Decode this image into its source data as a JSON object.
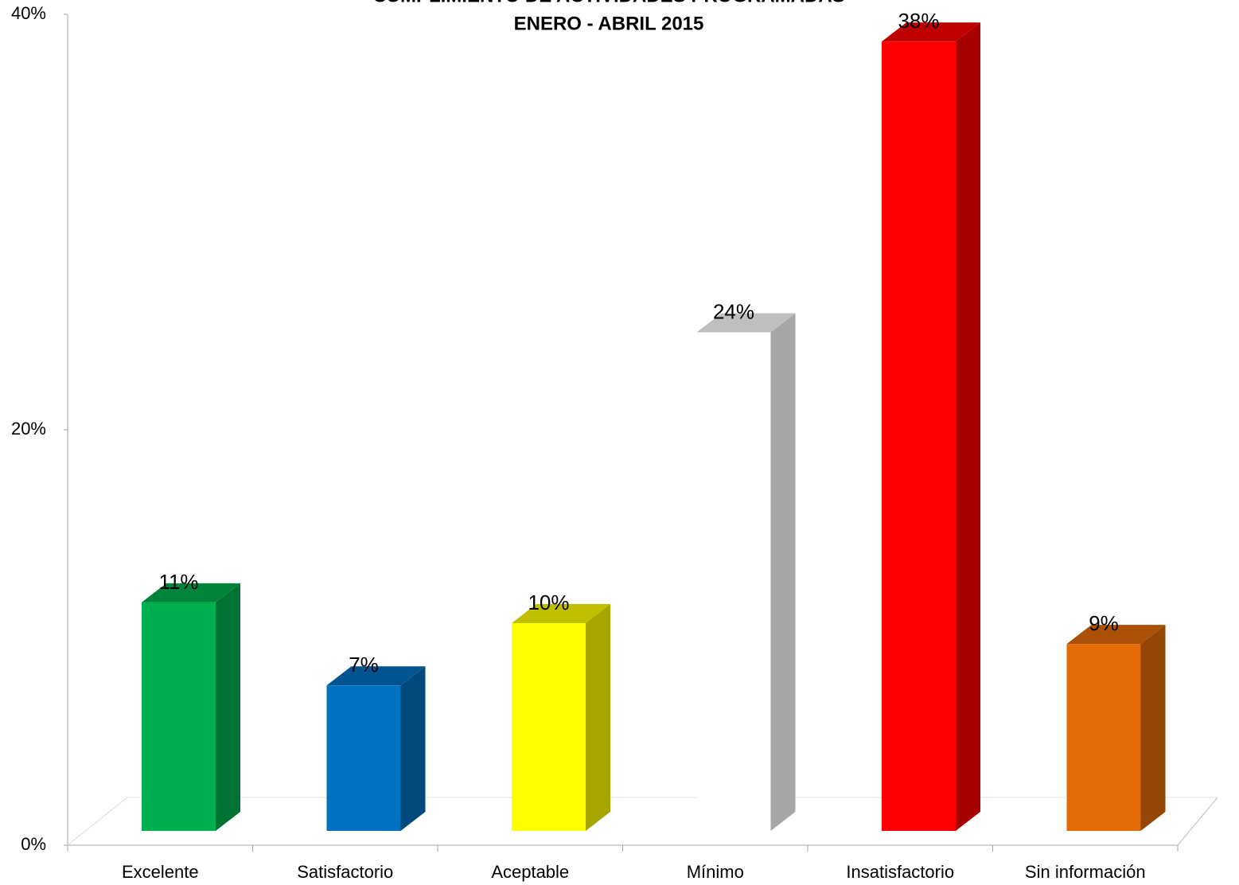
{
  "chart_data": {
    "type": "bar3d",
    "title": "CUMPLIMIENTO DE ACTIVIDADES PROGRAMADAS",
    "subtitle": "ENERO - ABRIL 2015",
    "categories": [
      "Excelente",
      "Satisfactorio",
      "Aceptable",
      "Mínimo",
      "Insatisfactorio",
      "Sin información"
    ],
    "values": [
      11,
      7,
      10,
      24,
      38,
      9
    ],
    "value_labels": [
      "11%",
      "7%",
      "10%",
      "24%",
      "38%",
      "9%"
    ],
    "colors": [
      "#00b050",
      "#0070c0",
      "#ffff00",
      "#ffffff",
      "#ff0000",
      "#e36c09"
    ],
    "ylim": [
      0,
      40
    ],
    "yticks": [
      {
        "value": 0,
        "label": "0%"
      },
      {
        "value": 20,
        "label": "20%"
      },
      {
        "value": 40,
        "label": "40%"
      }
    ]
  }
}
